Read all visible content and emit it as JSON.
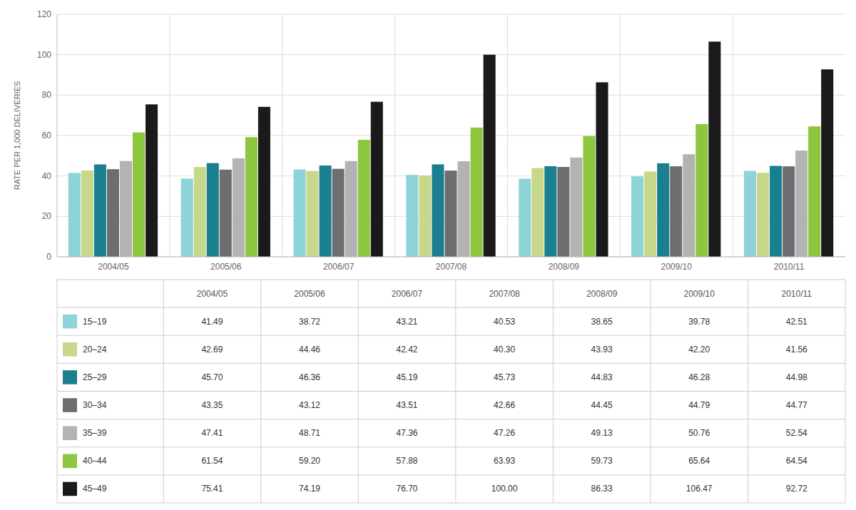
{
  "chart_data": {
    "type": "bar",
    "categories": [
      "2004/05",
      "2005/06",
      "2006/07",
      "2007/08",
      "2008/09",
      "2009/10",
      "2010/11"
    ],
    "series": [
      {
        "name": "15–19",
        "color": "#8dd3d7",
        "values": [
          41.49,
          38.72,
          43.21,
          40.53,
          38.65,
          39.78,
          42.51
        ],
        "value_labels": [
          "41.49",
          "38.72",
          "43.21",
          "40.53",
          "38.65",
          "39.78",
          "42.51"
        ]
      },
      {
        "name": "20–24",
        "color": "#c8d88a",
        "values": [
          42.69,
          44.46,
          42.42,
          40.3,
          43.93,
          42.2,
          41.56
        ],
        "value_labels": [
          "42.69",
          "44.46",
          "42.42",
          "40.30",
          "43.93",
          "42.20",
          "41.56"
        ]
      },
      {
        "name": "25–29",
        "color": "#1a7f8e",
        "values": [
          45.7,
          46.36,
          45.19,
          45.73,
          44.83,
          46.28,
          44.98
        ],
        "value_labels": [
          "45.70",
          "46.36",
          "45.19",
          "45.73",
          "44.83",
          "46.28",
          "44.98"
        ]
      },
      {
        "name": "30–34",
        "color": "#6d6e71",
        "values": [
          43.35,
          43.12,
          43.51,
          42.66,
          44.45,
          44.79,
          44.77
        ],
        "value_labels": [
          "43.35",
          "43.12",
          "43.51",
          "42.66",
          "44.45",
          "44.79",
          "44.77"
        ]
      },
      {
        "name": "35–39",
        "color": "#b3b3b3",
        "values": [
          47.41,
          48.71,
          47.36,
          47.26,
          49.13,
          50.76,
          52.54
        ],
        "value_labels": [
          "47.41",
          "48.71",
          "47.36",
          "47.26",
          "49.13",
          "50.76",
          "52.54"
        ]
      },
      {
        "name": "40–44",
        "color": "#8dc63f",
        "values": [
          61.54,
          59.2,
          57.88,
          63.93,
          59.73,
          65.64,
          64.54
        ],
        "value_labels": [
          "61.54",
          "59.20",
          "57.88",
          "63.93",
          "59.73",
          "65.64",
          "64.54"
        ]
      },
      {
        "name": "45–49",
        "color": "#1a1a1a",
        "values": [
          75.41,
          74.19,
          76.7,
          100.0,
          86.33,
          106.47,
          92.72
        ],
        "value_labels": [
          "75.41",
          "74.19",
          "76.70",
          "100.00",
          "86.33",
          "106.47",
          "92.72"
        ]
      }
    ],
    "y_label": "RATE PER 1,000 DELIVERIES",
    "ylim": [
      0,
      120
    ],
    "yticks": [
      0,
      20,
      40,
      60,
      80,
      100,
      120
    ],
    "grid": true
  }
}
